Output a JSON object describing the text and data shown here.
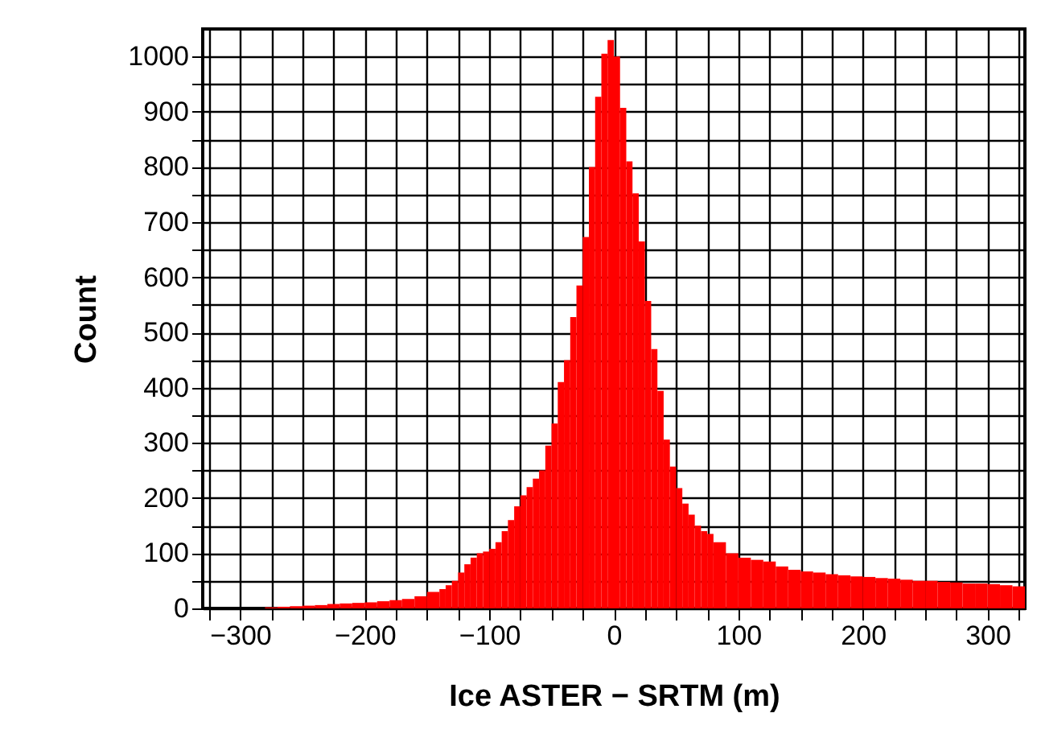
{
  "chart_data": {
    "type": "histogram",
    "xlabel": "Ice ASTER − SRTM (m)",
    "ylabel": "Count",
    "color": "#ff0000",
    "bins": [
      -280,
      -270,
      -260,
      -250,
      -240,
      -230,
      -220,
      -210,
      -200,
      -190,
      -180,
      -170,
      -160,
      -150,
      -140,
      -135,
      -130,
      -125,
      -120,
      -115,
      -110,
      -105,
      -100,
      -95,
      -90,
      -85,
      -80,
      -75,
      -70,
      -65,
      -60,
      -55,
      -50,
      -45,
      -40,
      -35,
      -30,
      -25,
      -20,
      -15,
      -10,
      -5,
      0,
      5,
      10,
      15,
      20,
      25,
      30,
      35,
      40,
      45,
      50,
      55,
      60,
      65,
      70,
      75,
      80,
      90,
      100,
      110,
      120,
      130,
      140,
      150,
      160,
      170,
      180,
      190,
      200,
      210,
      220,
      230,
      240,
      250,
      260,
      270,
      280,
      290,
      300,
      310,
      320,
      330
    ],
    "values": [
      2,
      3,
      4,
      5,
      6,
      8,
      9,
      10,
      11,
      13,
      15,
      17,
      22,
      30,
      35,
      42,
      50,
      65,
      80,
      92,
      100,
      103,
      108,
      120,
      140,
      160,
      185,
      205,
      220,
      235,
      250,
      295,
      335,
      410,
      450,
      528,
      585,
      673,
      800,
      927,
      1005,
      1030,
      1000,
      907,
      810,
      752,
      665,
      557,
      470,
      394,
      306,
      257,
      218,
      190,
      170,
      150,
      140,
      135,
      120,
      100,
      92,
      88,
      85,
      76,
      70,
      67,
      65,
      62,
      60,
      58,
      57,
      55,
      54,
      52,
      50,
      50,
      48,
      47,
      45,
      45,
      44,
      42,
      40
    ],
    "xlim": [
      -330,
      330
    ],
    "xticks": [
      {
        "value": -325,
        "label": null
      },
      -300,
      {
        "value": -275,
        "label": null
      },
      {
        "value": -250,
        "label": null
      },
      {
        "value": -225,
        "label": null
      },
      -200,
      {
        "value": -175,
        "label": null
      },
      {
        "value": -150,
        "label": null
      },
      {
        "value": -125,
        "label": null
      },
      -100,
      {
        "value": -75,
        "label": null
      },
      {
        "value": -50,
        "label": null
      },
      {
        "value": -25,
        "label": null
      },
      0,
      {
        "value": 25,
        "label": null
      },
      {
        "value": 50,
        "label": null
      },
      {
        "value": 75,
        "label": null
      },
      100,
      {
        "value": 125,
        "label": null
      },
      {
        "value": 150,
        "label": null
      },
      {
        "value": 175,
        "label": null
      },
      200,
      {
        "value": 225,
        "label": null
      },
      {
        "value": 250,
        "label": null
      },
      {
        "value": 275,
        "label": null
      },
      300,
      {
        "value": 325,
        "label": null
      }
    ],
    "ylim": [
      0,
      1050
    ],
    "yticks": [
      0,
      {
        "value": 50,
        "label": null
      },
      100,
      {
        "value": 150,
        "label": null
      },
      200,
      {
        "value": 250,
        "label": null
      },
      300,
      {
        "value": 350,
        "label": null
      },
      400,
      {
        "value": 450,
        "label": null
      },
      500,
      {
        "value": 550,
        "label": null
      },
      600,
      {
        "value": 650,
        "label": null
      },
      700,
      {
        "value": 750,
        "label": null
      },
      800,
      {
        "value": 850,
        "label": null
      },
      900,
      {
        "value": 950,
        "label": null
      },
      1000
    ],
    "grid": true
  }
}
